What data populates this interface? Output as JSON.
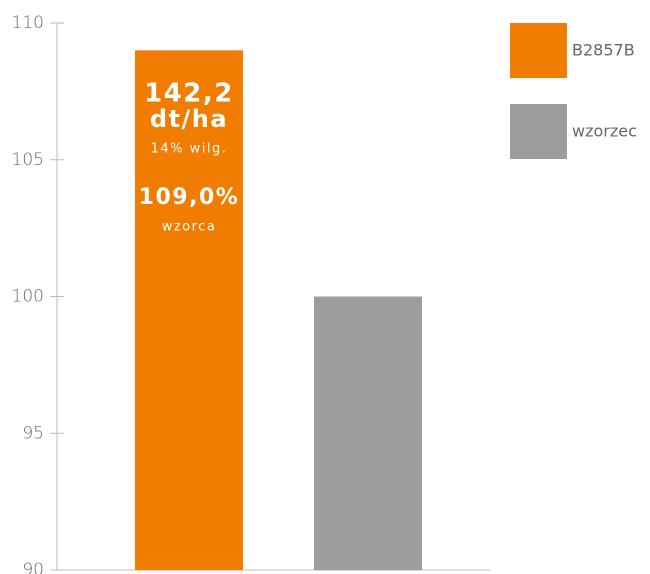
{
  "chart_data": {
    "type": "bar",
    "categories": [
      "B2857B",
      "wzorzec"
    ],
    "series": [
      {
        "name": "B2857B",
        "color": "#f07c00",
        "values": [
          109,
          null
        ]
      },
      {
        "name": "wzorzec",
        "color": "#9d9d9b",
        "values": [
          null,
          100
        ]
      }
    ],
    "value_labels": [
      "109,0%",
      null
    ],
    "annotations": [
      "142,2",
      "dt/ha",
      "14% wilg.",
      "wzorca"
    ],
    "ylim": [
      90,
      110
    ],
    "yticks": [
      90,
      95,
      100,
      105,
      110
    ],
    "legend": "right",
    "grid": false
  }
}
